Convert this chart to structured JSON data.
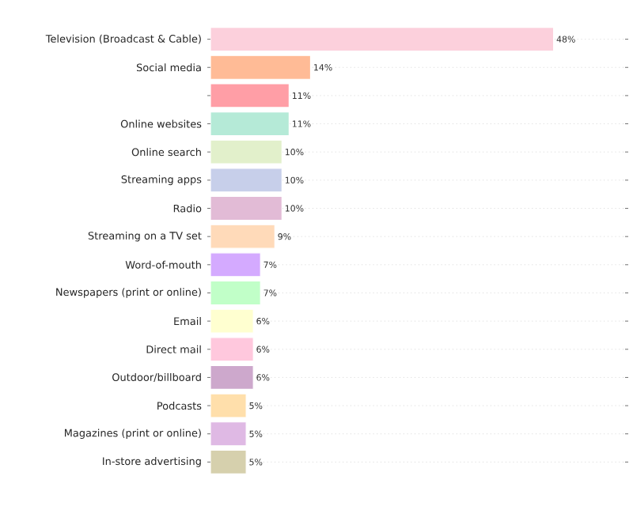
{
  "chart_data": {
    "type": "bar",
    "orientation": "horizontal",
    "categories": [
      "Television (Broadcast & Cable)",
      "Social media",
      null,
      "Online websites",
      "Online search",
      "Streaming apps",
      "Radio",
      "Streaming on a TV set",
      "Word-of-mouth",
      "Newspapers (print or online)",
      "Email",
      "Direct mail",
      "Outdoor/billboard",
      "Podcasts",
      "Magazines (print or online)",
      "In-store advertising"
    ],
    "values": [
      48,
      14,
      11,
      11,
      10,
      10,
      10,
      9,
      7,
      7,
      6,
      6,
      6,
      5,
      5,
      5
    ],
    "value_labels": [
      "48%",
      "14%",
      "11%",
      "11%",
      "10%",
      "10%",
      "10%",
      "9%",
      "7%",
      "7%",
      "6%",
      "6%",
      "6%",
      "5%",
      "5%",
      "5%"
    ],
    "colors": [
      "#fcd0dc",
      "#ffbb96",
      "#ff9ea6",
      "#b5ead7",
      "#e2f0cb",
      "#c7cfea",
      "#e2bbd6",
      "#ffdab9",
      "#d4aaff",
      "#c1ffc8",
      "#ffffd0",
      "#ffc8dd",
      "#cda8cc",
      "#ffdfab",
      "#dfb9e4",
      "#d6d0ad"
    ],
    "xlim": [
      0,
      58
    ],
    "grid": "y",
    "tick_labels": "y"
  }
}
